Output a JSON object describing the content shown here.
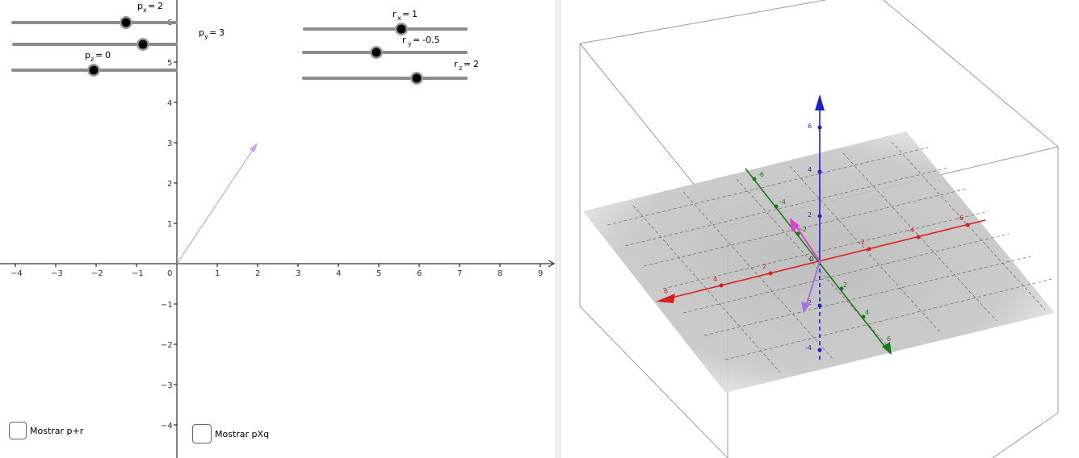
{
  "sliders": {
    "px": {
      "name": "p",
      "sub": "x",
      "value": 2
    },
    "py": {
      "name": "p",
      "sub": "y",
      "value": 3
    },
    "pz": {
      "name": "p",
      "sub": "z",
      "value": 0
    },
    "rx": {
      "name": "r",
      "sub": "x",
      "value": 1
    },
    "ry": {
      "name": "r",
      "sub": "y",
      "value": -0.5
    },
    "rz": {
      "name": "r",
      "sub": "z",
      "value": 2
    }
  },
  "checkboxes": {
    "mostrar_pr": {
      "label": "Mostrar p+r",
      "checked": false
    },
    "mostrar_pxq": {
      "label": "Mostrar pXq",
      "checked": false
    }
  },
  "graphics2d": {
    "x_ticks": [
      "−4",
      "−3",
      "−2",
      "−1",
      "0",
      "1",
      "2",
      "3",
      "4",
      "5",
      "6",
      "7",
      "8",
      "9"
    ],
    "y_ticks": [
      "6",
      "5",
      "4",
      "3",
      "2",
      "1",
      "−1",
      "−2",
      "−3",
      "−4"
    ],
    "vector_color": "#c9a0f5"
  },
  "graphics3d": {
    "x_axis_color": "#d81f1f",
    "y_axis_color": "#1a7a1a",
    "z_axis_color": "#1f1fd0",
    "x_ticks": [
      "6",
      "4",
      "2",
      "-2",
      "-4",
      "-6"
    ],
    "y_ticks": [
      "-6",
      "-4",
      "-2",
      "2",
      "4",
      "6"
    ],
    "z_ticks": [
      "6",
      "4",
      "2",
      "-2",
      "-4"
    ],
    "origin_label": "0",
    "vector_p_color": "#e040d0",
    "vector_q_color": "#a070e0"
  }
}
